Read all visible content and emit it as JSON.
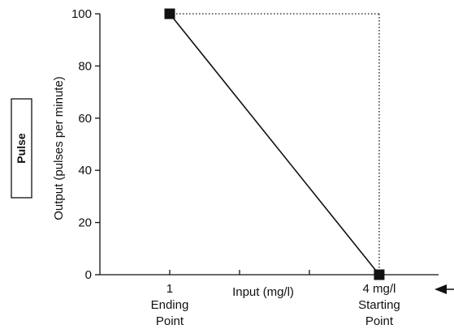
{
  "chart_data": {
    "type": "line",
    "xlabel": "Input (mg/l)",
    "ylabel": "Output (pulses per minute)",
    "side_label": "Pulse",
    "x_ticks": [
      {
        "label": "1",
        "sublabel": [
          "Ending",
          "Point"
        ]
      },
      {
        "label": "4 mg/l",
        "sublabel": [
          "Starting",
          "Point"
        ]
      }
    ],
    "xlim": [
      0,
      4.85
    ],
    "y_ticks": [
      "0",
      "20",
      "40",
      "60",
      "80",
      "100"
    ],
    "ylim": [
      0,
      100
    ],
    "series": [
      {
        "x": [
          1,
          4
        ],
        "y": [
          100,
          0
        ]
      }
    ],
    "guides": [
      {
        "x": [
          1,
          4
        ],
        "y": [
          100,
          100
        ]
      },
      {
        "x": [
          4,
          4
        ],
        "y": [
          100,
          0
        ]
      }
    ],
    "grid": false,
    "colors": {
      "line": "#111111",
      "marker": "#111111"
    }
  }
}
